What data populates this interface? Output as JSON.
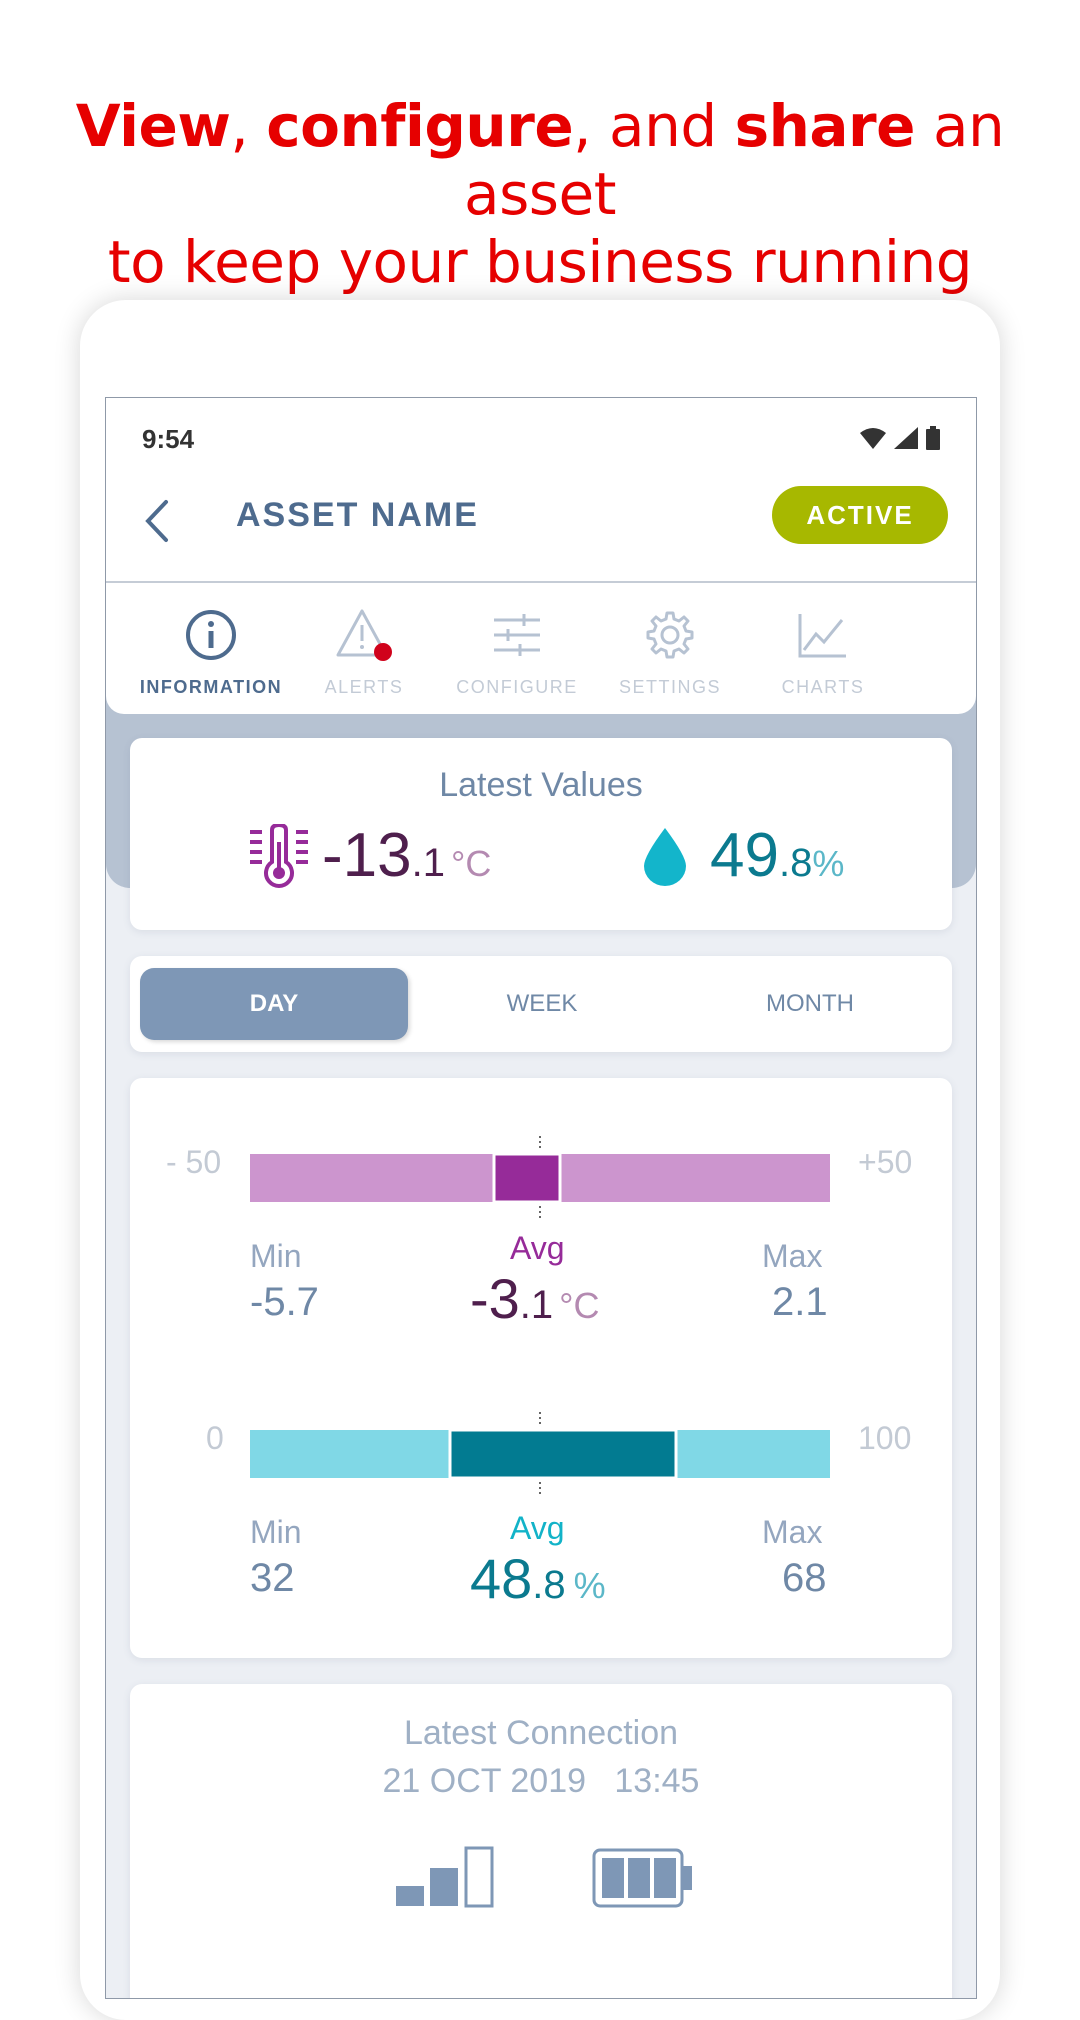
{
  "headline": {
    "line1_parts": [
      "View",
      ", ",
      "configure",
      ", and ",
      "share",
      " an asset"
    ],
    "line2": "to keep your business running"
  },
  "status_bar": {
    "time": "9:54",
    "icons": [
      "wifi-icon",
      "signal-icon",
      "battery-icon"
    ]
  },
  "header": {
    "title": "ASSET NAME",
    "status_button": "ACTIVE",
    "back_icon": "chevron-left-icon"
  },
  "tabs": [
    {
      "label": "INFORMATION",
      "icon": "info-icon",
      "active": true
    },
    {
      "label": "ALERTS",
      "icon": "alert-triangle-icon",
      "active": false,
      "badge": true
    },
    {
      "label": "CONFIGURE",
      "icon": "sliders-icon",
      "active": false
    },
    {
      "label": "SETTINGS",
      "icon": "gear-icon",
      "active": false
    },
    {
      "label": "CHARTS",
      "icon": "line-chart-icon",
      "active": false
    }
  ],
  "latest_values": {
    "title": "Latest Values",
    "temperature": {
      "int": "-13",
      "dec": ".1",
      "unit": "°C",
      "icon": "thermometer-icon"
    },
    "humidity": {
      "int": "49",
      "dec": ".8",
      "unit": "%",
      "icon": "water-drop-icon"
    }
  },
  "period_selector": {
    "options": [
      "DAY",
      "WEEK",
      "MONTH"
    ],
    "selected": "DAY"
  },
  "temperature_stats": {
    "range_min": "- 50",
    "range_max": "+50",
    "min_label": "Min",
    "min_value": "-5.7",
    "avg_label": "Avg",
    "avg_int": "-3",
    "avg_dec": ".1",
    "avg_unit": "°C",
    "max_label": "Max",
    "max_value": "2.1",
    "colors": {
      "track": "#cc95ce",
      "fill": "#962b99"
    }
  },
  "humidity_stats": {
    "range_min": "0",
    "range_max": "100",
    "min_label": "Min",
    "min_value": "32",
    "avg_label": "Avg",
    "avg_int": "48",
    "avg_dec": ".8",
    "avg_unit": "%",
    "max_label": "Max",
    "max_value": "68",
    "colors": {
      "track": "#80d8e6",
      "fill": "#027b91"
    }
  },
  "latest_connection": {
    "title": "Latest Connection",
    "date": "21 OCT 2019",
    "time": "13:45",
    "icons": [
      "signal-strength-icon",
      "battery-level-icon"
    ]
  },
  "colors": {
    "brand_red": "#e60000",
    "active_green": "#a7b800",
    "primary_blue": "#4e6b8e",
    "alert_red": "#d0021b"
  }
}
